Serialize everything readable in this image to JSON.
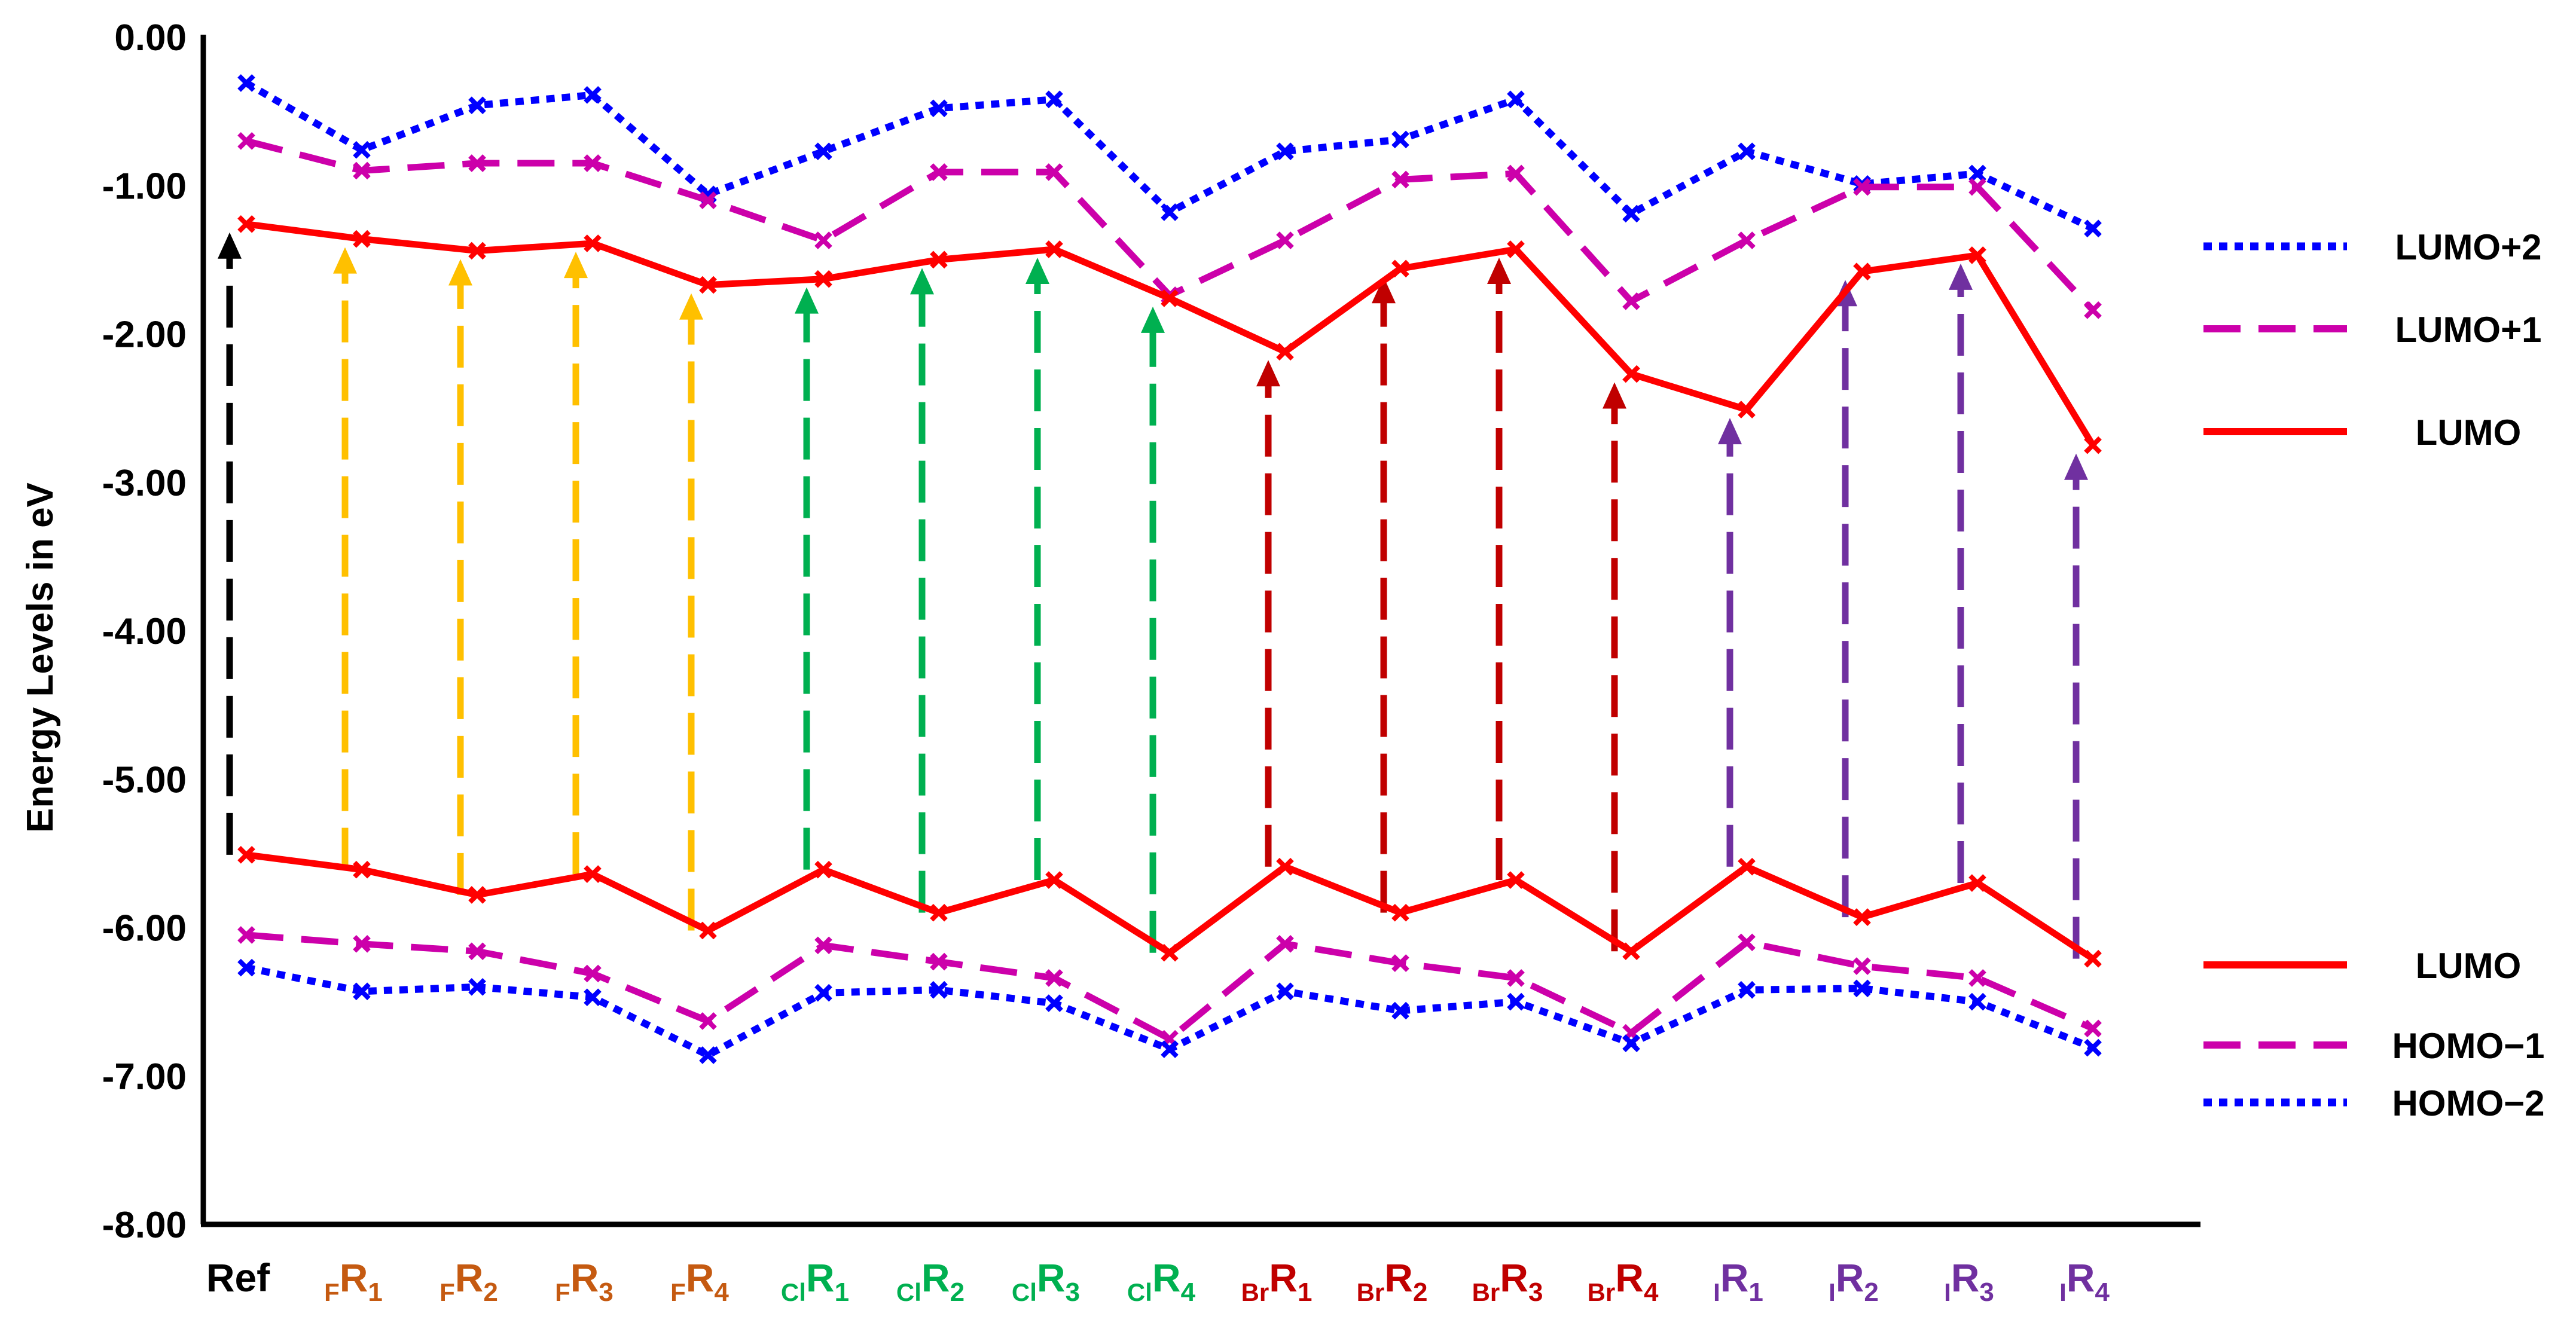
{
  "chart_data": {
    "type": "line",
    "ylabel": "Energy Levels in eV",
    "ylim": [
      -8.0,
      0.0
    ],
    "y_ticks": [
      "0.00",
      "-1.00",
      "-2.00",
      "-3.00",
      "-4.00",
      "-5.00",
      "-6.00",
      "-7.00",
      "-8.00"
    ],
    "grid": false,
    "legend_position": "right",
    "categories": [
      {
        "main": "Ref",
        "sub_pre": "",
        "sub_post": "",
        "color": "#000000"
      },
      {
        "main": "R",
        "sub_pre": "F",
        "sub_post": "1",
        "color": "#C55A11"
      },
      {
        "main": "R",
        "sub_pre": "F",
        "sub_post": "2",
        "color": "#C55A11"
      },
      {
        "main": "R",
        "sub_pre": "F",
        "sub_post": "3",
        "color": "#C55A11"
      },
      {
        "main": "R",
        "sub_pre": "F",
        "sub_post": "4",
        "color": "#C55A11"
      },
      {
        "main": "R",
        "sub_pre": "Cl",
        "sub_post": "1",
        "color": "#00B050"
      },
      {
        "main": "R",
        "sub_pre": "Cl",
        "sub_post": "2",
        "color": "#00B050"
      },
      {
        "main": "R",
        "sub_pre": "Cl",
        "sub_post": "3",
        "color": "#00B050"
      },
      {
        "main": "R",
        "sub_pre": "Cl",
        "sub_post": "4",
        "color": "#00B050"
      },
      {
        "main": "R",
        "sub_pre": "Br",
        "sub_post": "1",
        "color": "#C00000"
      },
      {
        "main": "R",
        "sub_pre": "Br",
        "sub_post": "2",
        "color": "#C00000"
      },
      {
        "main": "R",
        "sub_pre": "Br",
        "sub_post": "3",
        "color": "#C00000"
      },
      {
        "main": "R",
        "sub_pre": "Br",
        "sub_post": "4",
        "color": "#C00000"
      },
      {
        "main": "R",
        "sub_pre": "I",
        "sub_post": "1",
        "color": "#7030A0"
      },
      {
        "main": "R",
        "sub_pre": "I",
        "sub_post": "2",
        "color": "#7030A0"
      },
      {
        "main": "R",
        "sub_pre": "I",
        "sub_post": "3",
        "color": "#7030A0"
      },
      {
        "main": "R",
        "sub_pre": "I",
        "sub_post": "4",
        "color": "#7030A0"
      }
    ],
    "series": [
      {
        "name": "LUMO+2",
        "color": "#0000FF",
        "style": "dotted",
        "values": [
          -0.31,
          -0.76,
          -0.46,
          -0.39,
          -1.06,
          -0.77,
          -0.48,
          -0.42,
          -1.18,
          -0.77,
          -0.69,
          -0.42,
          -1.19,
          -0.77,
          -0.99,
          -0.92,
          -1.29
        ]
      },
      {
        "name": "LUMO+1",
        "color": "#CC00AA",
        "style": "dashed",
        "values": [
          -0.7,
          -0.9,
          -0.85,
          -0.85,
          -1.1,
          -1.37,
          -0.91,
          -0.91,
          -1.74,
          -1.37,
          -0.96,
          -0.92,
          -1.78,
          -1.37,
          -1.01,
          -1.01,
          -1.84
        ]
      },
      {
        "name": "LUMO",
        "color": "#FF0000",
        "style": "solid",
        "values": [
          -1.26,
          -1.36,
          -1.44,
          -1.39,
          -1.67,
          -1.63,
          -1.5,
          -1.43,
          -1.76,
          -2.12,
          -1.56,
          -1.43,
          -2.27,
          -2.51,
          -1.58,
          -1.47,
          -2.75
        ]
      },
      {
        "name": "LUMO",
        "color": "#FF0000",
        "style": "solid",
        "values": [
          -5.51,
          -5.61,
          -5.78,
          -5.64,
          -6.02,
          -5.61,
          -5.9,
          -5.68,
          -6.17,
          -5.59,
          -5.9,
          -5.68,
          -6.16,
          -5.59,
          -5.93,
          -5.7,
          -6.21
        ]
      },
      {
        "name": "HOMO−1",
        "color": "#CC00AA",
        "style": "dashed",
        "values": [
          -6.05,
          -6.11,
          -6.16,
          -6.31,
          -6.63,
          -6.12,
          -6.23,
          -6.34,
          -6.75,
          -6.11,
          -6.24,
          -6.34,
          -6.71,
          -6.1,
          -6.26,
          -6.34,
          -6.68
        ]
      },
      {
        "name": "HOMO−2",
        "color": "#0000FF",
        "style": "dotted",
        "values": [
          -6.27,
          -6.43,
          -6.4,
          -6.47,
          -6.86,
          -6.44,
          -6.42,
          -6.51,
          -6.82,
          -6.43,
          -6.56,
          -6.5,
          -6.78,
          -6.42,
          -6.41,
          -6.5,
          -6.81
        ]
      }
    ],
    "transition_arrows": {
      "from_series": 3,
      "to_series": 2,
      "colors": [
        "#000000",
        "#FFC000",
        "#FFC000",
        "#FFC000",
        "#FFC000",
        "#00B050",
        "#00B050",
        "#00B050",
        "#00B050",
        "#C00000",
        "#C00000",
        "#C00000",
        "#C00000",
        "#7030A0",
        "#7030A0",
        "#7030A0",
        "#7030A0"
      ]
    }
  }
}
